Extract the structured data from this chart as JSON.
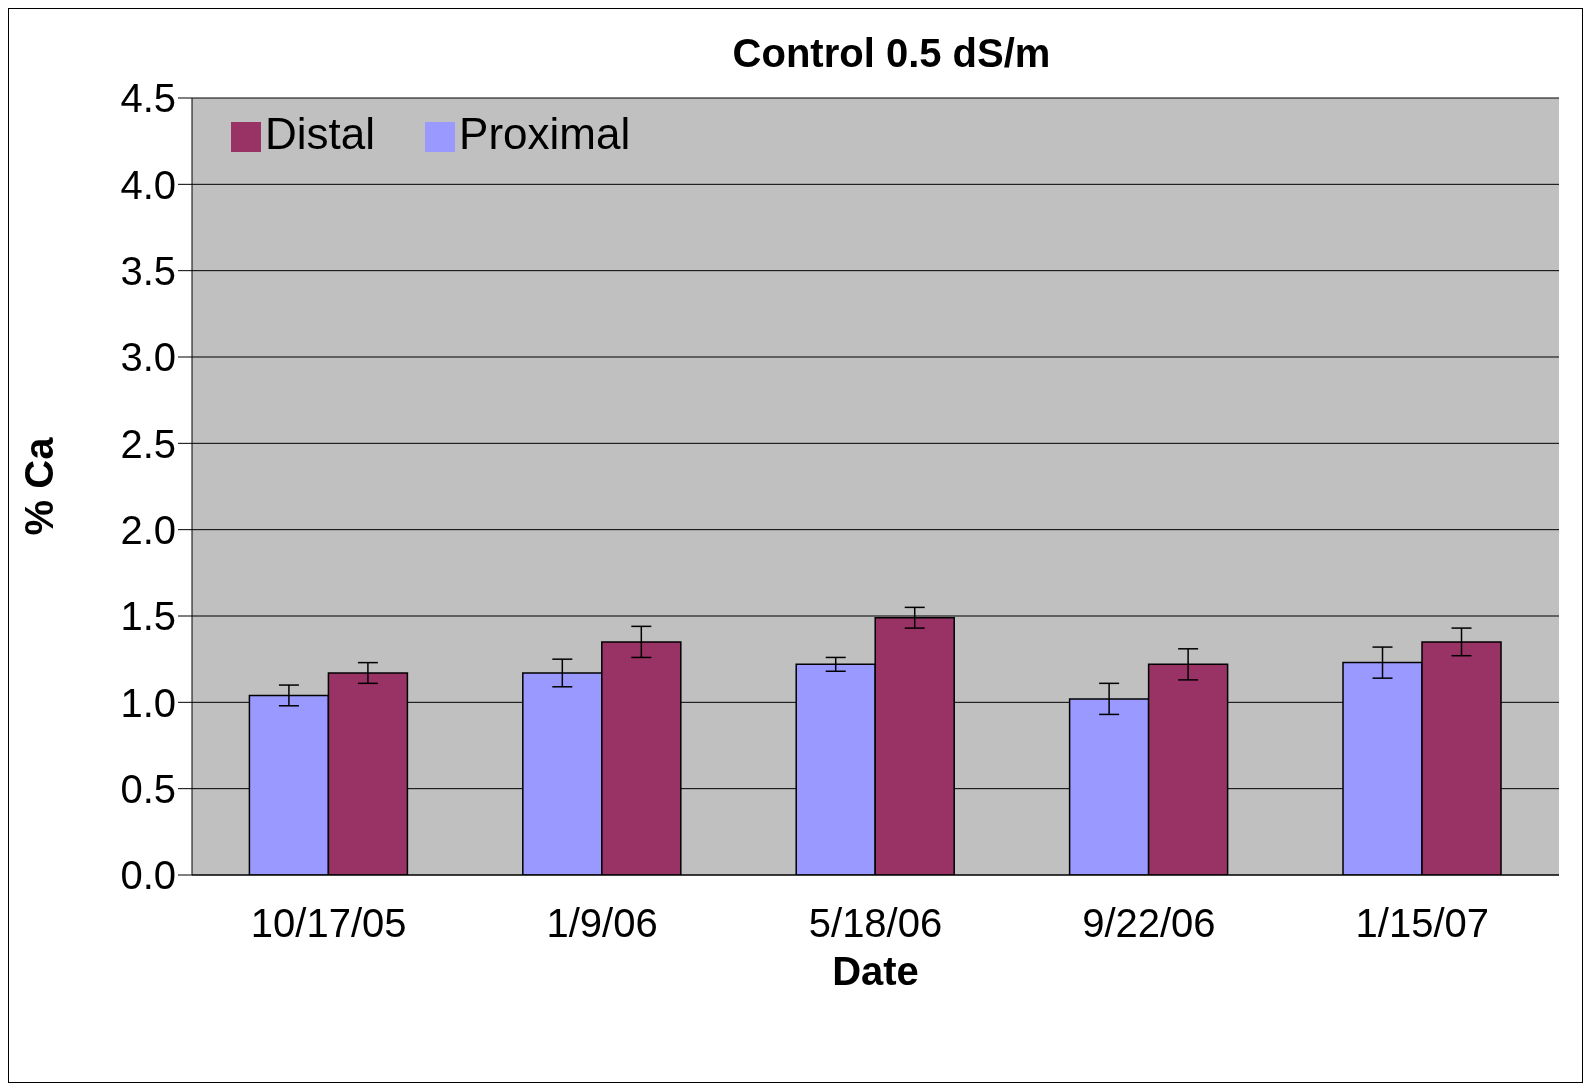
{
  "chart_data": {
    "type": "bar",
    "title": "Control 0.5 dS/m",
    "xlabel": "Date",
    "ylabel": "% Ca",
    "categories": [
      "10/17/05",
      "1/9/06",
      "5/18/06",
      "9/22/06",
      "1/15/07"
    ],
    "series": [
      {
        "name": "Proximal",
        "color": "#9999ff",
        "values": [
          1.04,
          1.17,
          1.22,
          1.02,
          1.23
        ],
        "errors": [
          0.06,
          0.08,
          0.04,
          0.09,
          0.09
        ]
      },
      {
        "name": "Distal",
        "color": "#993366",
        "values": [
          1.17,
          1.35,
          1.49,
          1.22,
          1.35
        ],
        "errors": [
          0.06,
          0.09,
          0.06,
          0.09,
          0.08
        ]
      }
    ],
    "ylim": [
      0,
      4.5
    ],
    "yticks": [
      {
        "value": 0,
        "label": "0.0"
      },
      {
        "value": 0.5,
        "label": "0.5"
      },
      {
        "value": 1,
        "label": "1.0"
      },
      {
        "value": 1.5,
        "label": "1.5"
      },
      {
        "value": 2,
        "label": "2.0"
      },
      {
        "value": 2.5,
        "label": "2.5"
      },
      {
        "value": 3,
        "label": "3.0"
      },
      {
        "value": 3.5,
        "label": "3.5"
      },
      {
        "value": 4,
        "label": "4.0"
      },
      {
        "value": 4.5,
        "label": "4.5"
      }
    ],
    "grid": "y",
    "legend": "top left"
  }
}
